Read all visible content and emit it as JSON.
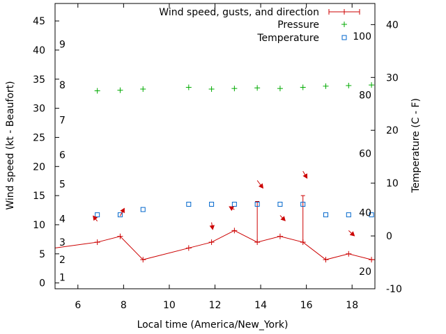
{
  "chart_data": {
    "type": "line",
    "xlabel": "Local time (America/New_York)",
    "ylabel_left": "Wind speed (kt - Beaufort)",
    "ylabel_right": "Temperature (C - F)",
    "xlim": [
      5,
      19
    ],
    "x_ticks": [
      6,
      8,
      10,
      12,
      14,
      16,
      18
    ],
    "ylim_left": [
      -1,
      48
    ],
    "y_ticks_left": [
      0,
      5,
      10,
      15,
      20,
      25,
      30,
      35,
      40,
      45
    ],
    "ylim_right_celsius": [
      -10,
      44
    ],
    "y_ticks_right_celsius": [
      -10,
      0,
      10,
      20,
      30,
      40
    ],
    "beaufort_labels": [
      {
        "label": "1",
        "kt": 1
      },
      {
        "label": "2",
        "kt": 4
      },
      {
        "label": "3",
        "kt": 7
      },
      {
        "label": "4",
        "kt": 11
      },
      {
        "label": "5",
        "kt": 17
      },
      {
        "label": "6",
        "kt": 22
      },
      {
        "label": "7",
        "kt": 28
      },
      {
        "label": "8",
        "kt": 34
      },
      {
        "label": "9",
        "kt": 41
      }
    ],
    "fahrenheit_labels": [
      {
        "label": "20",
        "c": -6.7
      },
      {
        "label": "40",
        "c": 4.4
      },
      {
        "label": "60",
        "c": 15.6
      },
      {
        "label": "80",
        "c": 26.7
      },
      {
        "label": "100",
        "c": 37.8
      }
    ],
    "series": [
      {
        "name": "Wind speed, gusts, and direction",
        "color": "#cc0000",
        "x": [
          5,
          6.85,
          7.85,
          8.85,
          10.85,
          11.85,
          12.85,
          13.85,
          14.85,
          15.85,
          16.85,
          17.85,
          18.85,
          19
        ],
        "values": [
          6,
          7,
          8,
          4,
          6,
          7,
          9,
          7,
          8,
          7,
          4,
          5,
          4,
          4
        ],
        "gusts": [
          {
            "x": 13.85,
            "low": 7,
            "high": 14
          },
          {
            "x": 15.85,
            "low": 7,
            "high": 15
          }
        ],
        "direction_arrows": [
          {
            "x": 6.85,
            "y": 10.6,
            "dx": -0.18,
            "dy": -0.9
          },
          {
            "x": 7.85,
            "y": 11.5,
            "dx": 0.18,
            "dy": -1.3
          },
          {
            "x": 11.85,
            "y": 10.4,
            "dx": 0.05,
            "dy": 1.2
          },
          {
            "x": 12.85,
            "y": 12.6,
            "dx": -0.22,
            "dy": -0.5
          },
          {
            "x": 13.85,
            "y": 17.6,
            "dx": 0.25,
            "dy": 1.3
          },
          {
            "x": 14.85,
            "y": 11.6,
            "dx": 0.22,
            "dy": 0.9
          },
          {
            "x": 15.85,
            "y": 19.2,
            "dx": 0.18,
            "dy": 1.2
          },
          {
            "x": 17.85,
            "y": 9.0,
            "dx": 0.25,
            "dy": 0.9
          }
        ]
      },
      {
        "name": "Pressure",
        "color": "#00aa00",
        "x": [
          6.85,
          7.85,
          8.85,
          10.85,
          11.85,
          12.85,
          13.85,
          14.85,
          15.85,
          16.85,
          17.85,
          18.85
        ],
        "values": [
          33.0,
          33.1,
          33.3,
          33.6,
          33.3,
          33.4,
          33.5,
          33.4,
          33.6,
          33.8,
          33.9,
          34.0
        ]
      },
      {
        "name": "Temperature",
        "color": "#0066cc",
        "x": [
          6.85,
          7.85,
          8.85,
          10.85,
          11.85,
          12.85,
          13.85,
          14.85,
          15.85,
          16.85,
          17.85,
          18.85
        ],
        "values": [
          4,
          4,
          5,
          6,
          6,
          6,
          6,
          6,
          6,
          4,
          4,
          4
        ]
      }
    ]
  }
}
